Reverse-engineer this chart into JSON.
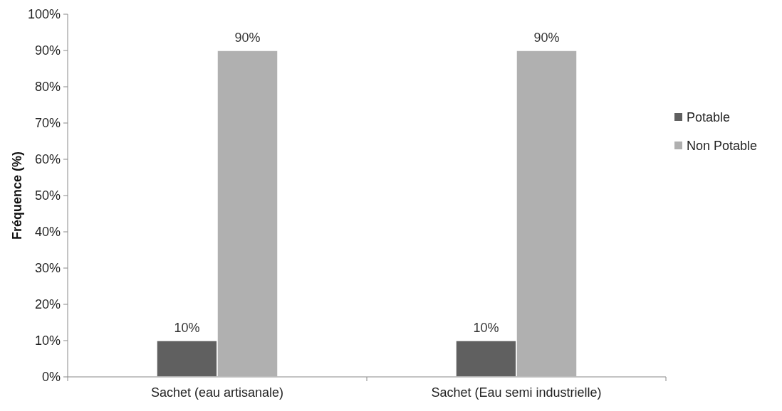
{
  "chart_data": {
    "type": "bar",
    "ylabel": "Fréquence (%)",
    "categories": [
      "Sachet (eau artisanale)",
      "Sachet (Eau semi industrielle)"
    ],
    "series": [
      {
        "name": "Potable",
        "color": "#606060",
        "values": [
          10,
          10
        ],
        "value_labels": [
          "10%",
          "10%"
        ]
      },
      {
        "name": "Non Potable",
        "color": "#b0b0b0",
        "values": [
          90,
          90
        ],
        "value_labels": [
          "90%",
          "90%"
        ]
      }
    ],
    "ylim": [
      0,
      100
    ],
    "yticks": [
      {
        "value": 0,
        "label": "0%"
      },
      {
        "value": 10,
        "label": "10%"
      },
      {
        "value": 20,
        "label": "20%"
      },
      {
        "value": 30,
        "label": "30%"
      },
      {
        "value": 40,
        "label": "40%"
      },
      {
        "value": 50,
        "label": "50%"
      },
      {
        "value": 60,
        "label": "60%"
      },
      {
        "value": 70,
        "label": "70%"
      },
      {
        "value": 80,
        "label": "80%"
      },
      {
        "value": 90,
        "label": "90%"
      },
      {
        "value": 100,
        "label": "100%"
      }
    ],
    "grid": false,
    "legend": "right"
  }
}
